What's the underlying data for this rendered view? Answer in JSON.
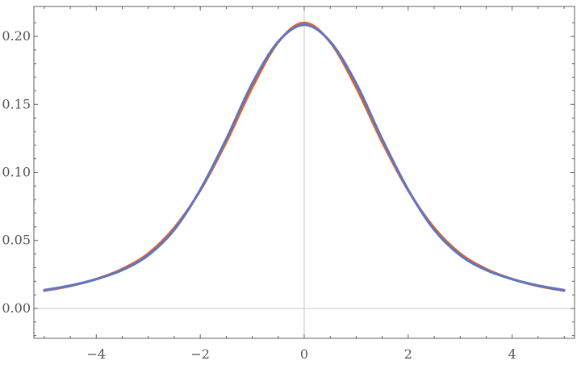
{
  "chart_data": {
    "type": "line",
    "title": "",
    "xlabel": "",
    "ylabel": "",
    "xlim": [
      -5.2,
      5.2
    ],
    "ylim": [
      -0.022,
      0.222
    ],
    "xticks": [
      -4,
      -2,
      0,
      2,
      4
    ],
    "xtick_labels": [
      "−4",
      "−2",
      "0",
      "2",
      "4"
    ],
    "yticks": [
      0.0,
      0.05,
      0.1,
      0.15,
      0.2
    ],
    "ytick_labels": [
      "0.00",
      "0.05",
      "0.10",
      "0.15",
      "0.20"
    ],
    "grid": false,
    "legend": "none",
    "series": [
      {
        "color": "#e0632a",
        "x": [
          -5,
          -4.5,
          -4,
          -3.5,
          -3,
          -2.5,
          -2,
          -1.5,
          -1,
          -0.5,
          0,
          0.5,
          1,
          1.5,
          2,
          2.5,
          3,
          3.5,
          4,
          4.5,
          5
        ],
        "y": [
          0.013,
          0.0165,
          0.0216,
          0.029,
          0.0404,
          0.0593,
          0.0867,
          0.1222,
          0.1624,
          0.1957,
          0.21,
          0.1957,
          0.1624,
          0.1222,
          0.0867,
          0.0593,
          0.0404,
          0.029,
          0.0216,
          0.0165,
          0.013
        ]
      },
      {
        "color": "#5e76c0",
        "x": [
          -5,
          -4.5,
          -4,
          -3.5,
          -3,
          -2.5,
          -2,
          -1.5,
          -1,
          -0.5,
          0,
          0.5,
          1,
          1.5,
          2,
          2.5,
          3,
          3.5,
          4,
          4.5,
          5
        ],
        "y": [
          0.0135,
          0.0168,
          0.0215,
          0.0282,
          0.0391,
          0.0578,
          0.0872,
          0.1245,
          0.1654,
          0.1962,
          0.2085,
          0.1962,
          0.1654,
          0.1245,
          0.0872,
          0.0578,
          0.0391,
          0.0282,
          0.0215,
          0.0168,
          0.0135
        ]
      }
    ]
  }
}
